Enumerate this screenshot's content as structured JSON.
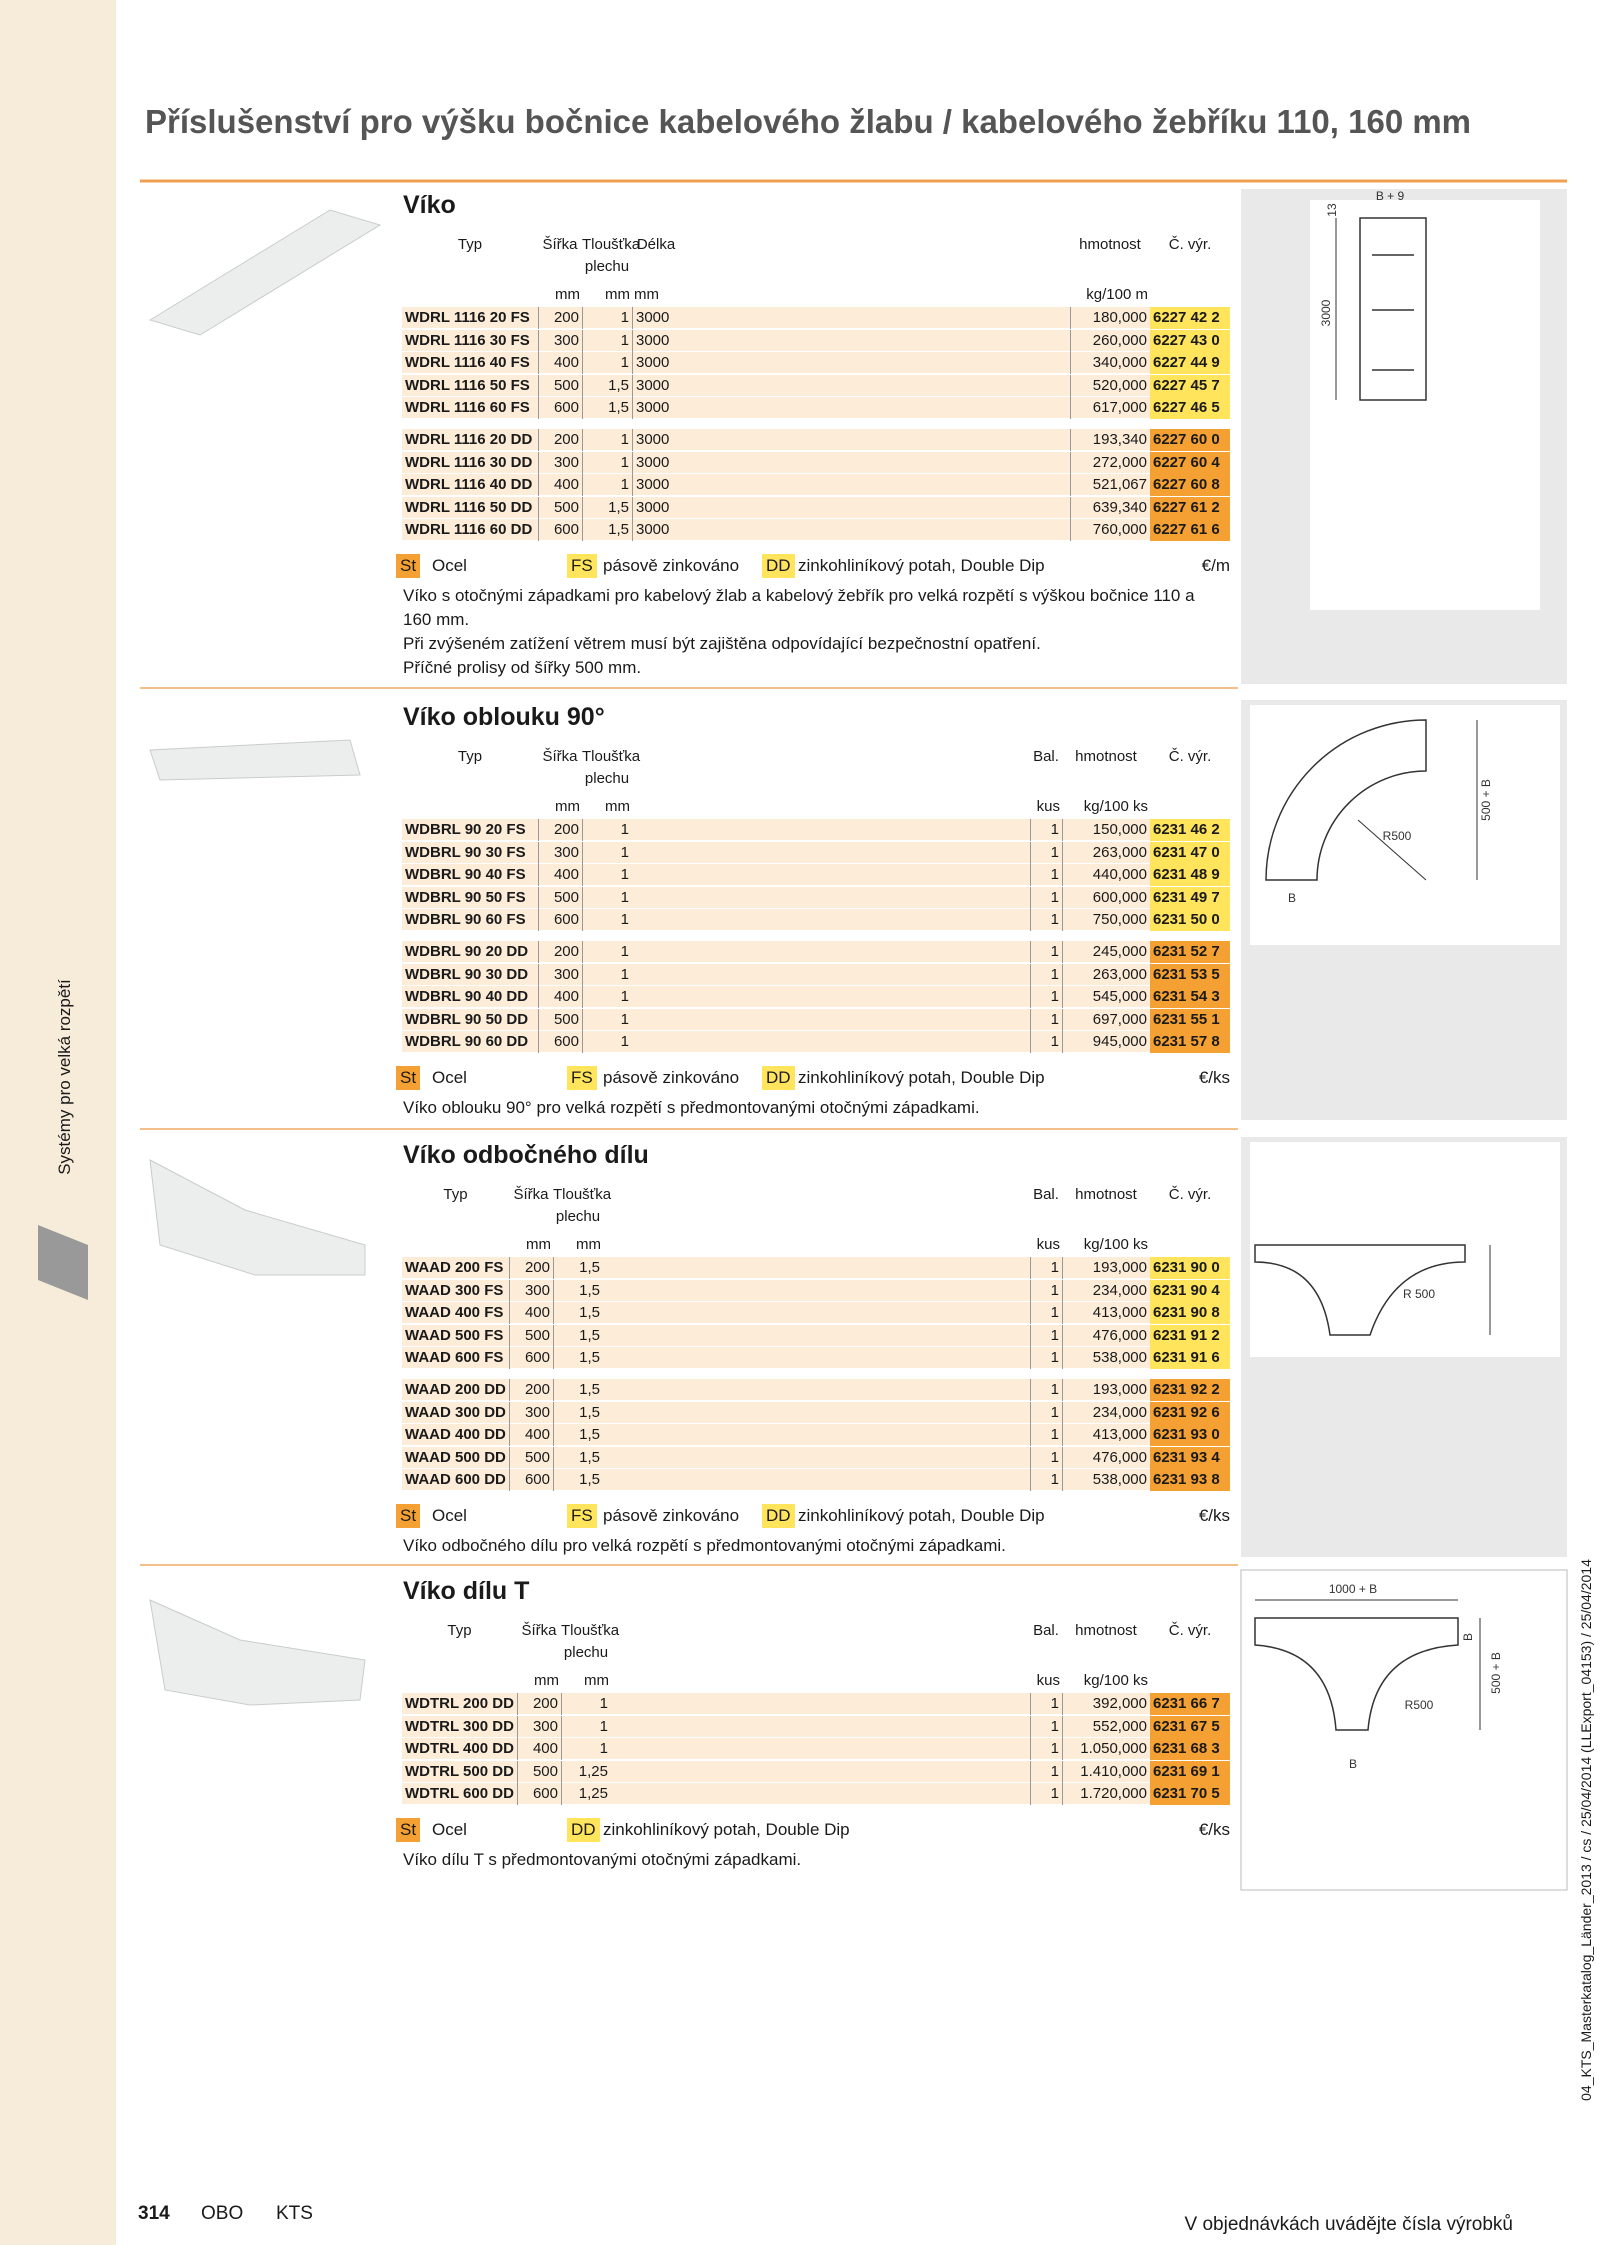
{
  "page_title": "Příslušenství pro výšku bočnice kabelového žlabu / kabelového žebříku 110, 160 mm",
  "side_label": "Systémy pro velká rozpětí",
  "side_meta": "04_KTS_Masterkatalog_Länder_2013 / cs / 25/04/2014 (LLExport_04153) / 25/04/2014",
  "footer": {
    "page_number": "314",
    "brand": "OBO",
    "section": "KTS",
    "note": "V objednávkách uvádějte čísla výrobků"
  },
  "sections": [
    {
      "title": "Víko",
      "columns": [
        "Typ",
        "Šířka",
        "Tloušťka plechu",
        "Délka",
        "hmotnost",
        "Č. výr."
      ],
      "units": [
        null,
        "mm",
        "mm",
        "mm",
        "kg/100 m",
        null
      ],
      "groups": [
        {
          "color": "#ffe45c",
          "rows": [
            [
              "WDRL 1116 20 FS",
              "200",
              "1",
              "3000",
              "180,000",
              "6227 42 2"
            ],
            [
              "WDRL 1116 30 FS",
              "300",
              "1",
              "3000",
              "260,000",
              "6227 43 0"
            ],
            [
              "WDRL 1116 40 FS",
              "400",
              "1",
              "3000",
              "340,000",
              "6227 44 9"
            ],
            [
              "WDRL 1116 50 FS",
              "500",
              "1,5",
              "3000",
              "520,000",
              "6227 45 7"
            ],
            [
              "WDRL 1116 60 FS",
              "600",
              "1,5",
              "3000",
              "617,000",
              "6227 46 5"
            ]
          ]
        },
        {
          "color": "#f5a032",
          "rows": [
            [
              "WDRL 1116 20 DD",
              "200",
              "1",
              "3000",
              "193,340",
              "6227 60 0"
            ],
            [
              "WDRL 1116 30 DD",
              "300",
              "1",
              "3000",
              "272,000",
              "6227 60 4"
            ],
            [
              "WDRL 1116 40 DD",
              "400",
              "1",
              "3000",
              "521,067",
              "6227 60 8"
            ],
            [
              "WDRL 1116 50 DD",
              "500",
              "1,5",
              "3000",
              "639,340",
              "6227 61 2"
            ],
            [
              "WDRL 1116 60 DD",
              "600",
              "1,5",
              "3000",
              "760,000",
              "6227 61 6"
            ]
          ]
        }
      ],
      "legend": [
        {
          "code": "St",
          "text": "Ocel",
          "color": "#f5a032"
        },
        {
          "code": "FS",
          "text": "pásově zinkováno",
          "color": "#ffe45c"
        },
        {
          "code": "DD",
          "text": "zinkohliníkový potah, Double Dip",
          "color": "#ffe45c"
        }
      ],
      "price_unit": "€/m",
      "description": [
        "Víko s otočnými západkami pro kabelový žlab a kabelový žebřík pro velká rozpětí s výškou bočnice 110 a 160 mm.",
        "Při zvýšeném zatížení větrem musí být zajištěna odpovídající bezpečnostní opatření.",
        "Příčné prolisy od šířky 500 mm."
      ],
      "drawing_labels": [
        "B + 9",
        "13",
        "3000"
      ]
    },
    {
      "title": "Víko oblouku 90°",
      "columns": [
        "Typ",
        "Šířka",
        "Tloušťka plechu",
        "Bal.",
        "hmotnost",
        "Č. výr."
      ],
      "units": [
        null,
        "mm",
        "mm",
        "kus",
        "kg/100 ks",
        null
      ],
      "groups": [
        {
          "color": "#ffe45c",
          "rows": [
            [
              "WDBRL 90 20 FS",
              "200",
              "1",
              "1",
              "150,000",
              "6231 46 2"
            ],
            [
              "WDBRL 90 30 FS",
              "300",
              "1",
              "1",
              "263,000",
              "6231 47 0"
            ],
            [
              "WDBRL 90 40 FS",
              "400",
              "1",
              "1",
              "440,000",
              "6231 48 9"
            ],
            [
              "WDBRL 90 50 FS",
              "500",
              "1",
              "1",
              "600,000",
              "6231 49 7"
            ],
            [
              "WDBRL 90 60 FS",
              "600",
              "1",
              "1",
              "750,000",
              "6231 50 0"
            ]
          ]
        },
        {
          "color": "#f5a032",
          "rows": [
            [
              "WDBRL 90 20 DD",
              "200",
              "1",
              "1",
              "245,000",
              "6231 52 7"
            ],
            [
              "WDBRL 90 30 DD",
              "300",
              "1",
              "1",
              "263,000",
              "6231 53 5"
            ],
            [
              "WDBRL 90 40 DD",
              "400",
              "1",
              "1",
              "545,000",
              "6231 54 3"
            ],
            [
              "WDBRL 90 50 DD",
              "500",
              "1",
              "1",
              "697,000",
              "6231 55 1"
            ],
            [
              "WDBRL 90 60 DD",
              "600",
              "1",
              "1",
              "945,000",
              "6231 57 8"
            ]
          ]
        }
      ],
      "legend": [
        {
          "code": "St",
          "text": "Ocel",
          "color": "#f5a032"
        },
        {
          "code": "FS",
          "text": "pásově zinkováno",
          "color": "#ffe45c"
        },
        {
          "code": "DD",
          "text": "zinkohliníkový potah, Double Dip",
          "color": "#ffe45c"
        }
      ],
      "price_unit": "€/ks",
      "description": [
        "Víko oblouku 90° pro velká rozpětí s předmontovanými otočnými západkami."
      ],
      "drawing_labels": [
        "R500",
        "500 + B",
        "B"
      ]
    },
    {
      "title": "Víko odbočného dílu",
      "columns": [
        "Typ",
        "Šířka",
        "Tloušťka plechu",
        "Bal.",
        "hmotnost",
        "Č. výr."
      ],
      "units": [
        null,
        "mm",
        "mm",
        "kus",
        "kg/100 ks",
        null
      ],
      "groups": [
        {
          "color": "#ffe45c",
          "rows": [
            [
              "WAAD 200 FS",
              "200",
              "1,5",
              "1",
              "193,000",
              "6231 90 0"
            ],
            [
              "WAAD 300 FS",
              "300",
              "1,5",
              "1",
              "234,000",
              "6231 90 4"
            ],
            [
              "WAAD 400 FS",
              "400",
              "1,5",
              "1",
              "413,000",
              "6231 90 8"
            ],
            [
              "WAAD 500 FS",
              "500",
              "1,5",
              "1",
              "476,000",
              "6231 91 2"
            ],
            [
              "WAAD 600 FS",
              "600",
              "1,5",
              "1",
              "538,000",
              "6231 91 6"
            ]
          ]
        },
        {
          "color": "#f5a032",
          "rows": [
            [
              "WAAD 200 DD",
              "200",
              "1,5",
              "1",
              "193,000",
              "6231 92 2"
            ],
            [
              "WAAD 300 DD",
              "300",
              "1,5",
              "1",
              "234,000",
              "6231 92 6"
            ],
            [
              "WAAD 400 DD",
              "400",
              "1,5",
              "1",
              "413,000",
              "6231 93 0"
            ],
            [
              "WAAD 500 DD",
              "500",
              "1,5",
              "1",
              "476,000",
              "6231 93 4"
            ],
            [
              "WAAD 600 DD",
              "600",
              "1,5",
              "1",
              "538,000",
              "6231 93 8"
            ]
          ]
        }
      ],
      "legend": [
        {
          "code": "St",
          "text": "Ocel",
          "color": "#f5a032"
        },
        {
          "code": "FS",
          "text": "pásově zinkováno",
          "color": "#ffe45c"
        },
        {
          "code": "DD",
          "text": "zinkohliníkový potah, Double Dip",
          "color": "#ffe45c"
        }
      ],
      "price_unit": "€/ks",
      "description": [
        "Víko odbočného dílu pro velká rozpětí s předmontovanými otočnými západkami."
      ],
      "drawing_labels": [
        "R 500"
      ]
    },
    {
      "title": "Víko dílu T",
      "columns": [
        "Typ",
        "Šířka",
        "Tloušťka plechu",
        "Bal.",
        "hmotnost",
        "Č. výr."
      ],
      "units": [
        null,
        "mm",
        "mm",
        "kus",
        "kg/100 ks",
        null
      ],
      "groups": [
        {
          "color": "#f5a032",
          "rows": [
            [
              "WDTRL 200 DD",
              "200",
              "1",
              "1",
              "392,000",
              "6231 66 7"
            ],
            [
              "WDTRL 300 DD",
              "300",
              "1",
              "1",
              "552,000",
              "6231 67 5"
            ],
            [
              "WDTRL 400 DD",
              "400",
              "1",
              "1",
              "1.050,000",
              "6231 68 3"
            ],
            [
              "WDTRL 500 DD",
              "500",
              "1,25",
              "1",
              "1.410,000",
              "6231 69 1"
            ],
            [
              "WDTRL 600 DD",
              "600",
              "1,25",
              "1",
              "1.720,000",
              "6231 70 5"
            ]
          ]
        }
      ],
      "legend": [
        {
          "code": "St",
          "text": "Ocel",
          "color": "#f5a032"
        },
        {
          "code": "DD",
          "text": "zinkohliníkový potah, Double Dip",
          "color": "#ffe45c"
        }
      ],
      "price_unit": "€/ks",
      "description": [
        "Víko dílu T s předmontovanými otočnými západkami."
      ],
      "drawing_labels": [
        "1000 + B",
        "B",
        "500 + B",
        "R500",
        "B"
      ]
    }
  ]
}
